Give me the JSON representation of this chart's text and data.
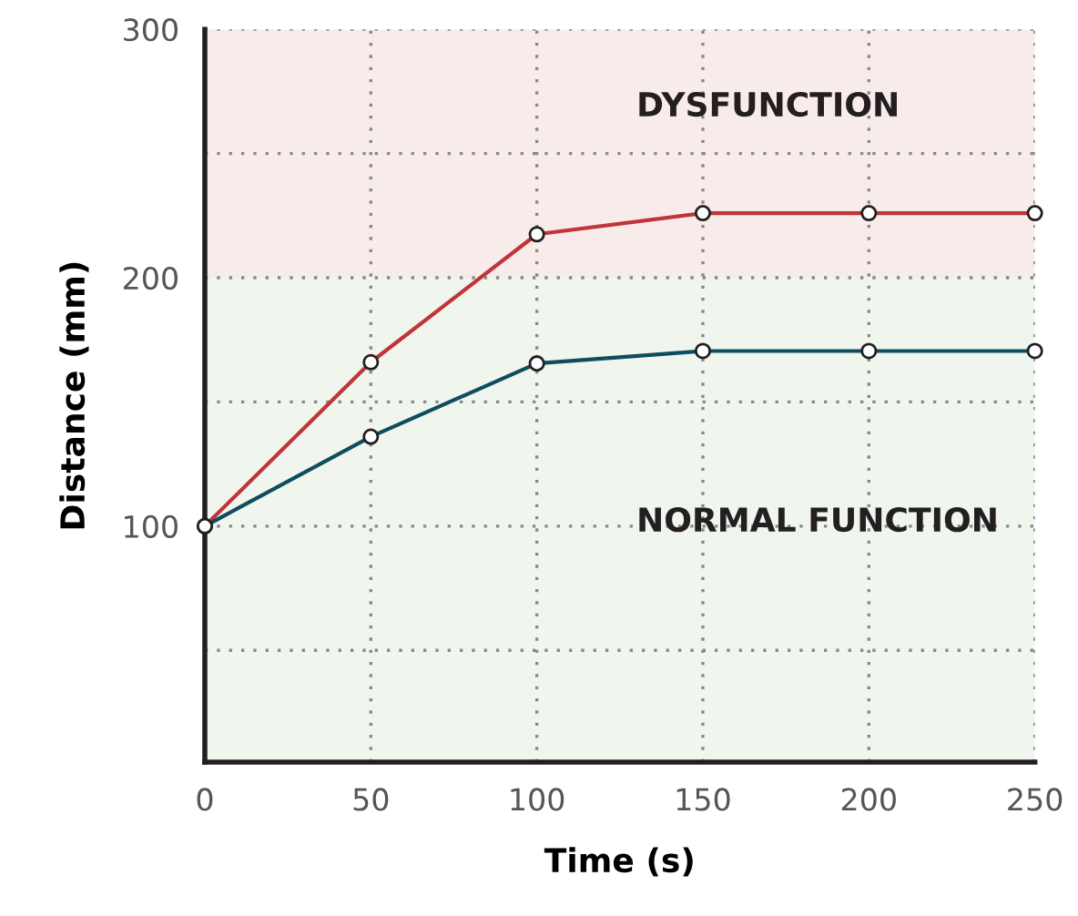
{
  "chart_data": {
    "type": "line",
    "xlabel": "Time (s)",
    "ylabel": "Distance (mm)",
    "x": [
      0,
      50,
      100,
      150,
      200,
      250
    ],
    "series": [
      {
        "color": "#c0343a",
        "values": [
          100,
          166,
          217.5,
          226,
          226,
          226
        ]
      },
      {
        "color": "#0e4d5f",
        "values": [
          100,
          136,
          165.5,
          170.5,
          170.5,
          170.5
        ]
      }
    ],
    "xlim": [
      0,
      250
    ],
    "ylim": [
      5,
      300
    ],
    "xticks": [
      0,
      50,
      100,
      150,
      200,
      250
    ],
    "yticks": [
      {
        "value": 50,
        "label": null
      },
      100,
      {
        "value": 150,
        "label": null
      },
      200,
      {
        "value": 250,
        "label": null
      },
      300
    ],
    "bands": [
      {
        "axis": "y",
        "from": 200,
        "to": 300,
        "label": "DYSFUNCTION",
        "color": "#f8ecea"
      },
      {
        "axis": "y",
        "from": 5,
        "to": 200,
        "label": "NORMAL FUNCTION",
        "color": "#f0f5ed"
      }
    ],
    "grid": true,
    "legend": false,
    "marker": "circle",
    "line_style": "solid"
  }
}
